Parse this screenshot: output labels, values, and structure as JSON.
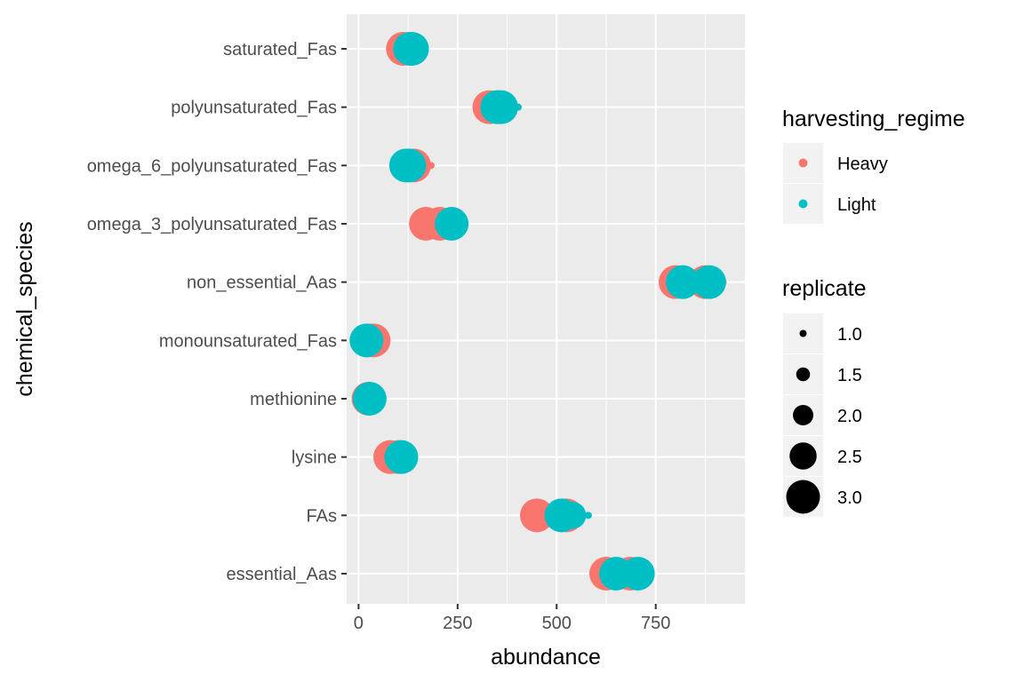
{
  "chart_data": {
    "type": "scatter",
    "xlabel": "abundance",
    "ylabel": "chemical_species",
    "xlim": [
      -30,
      975
    ],
    "xticks": [
      0,
      250,
      500,
      750
    ],
    "xtick_labels": [
      "0",
      "250",
      "500",
      "750"
    ],
    "categories": [
      "essential_Aas",
      "FAs",
      "lysine",
      "methionine",
      "monounsaturated_Fas",
      "non_essential_Aas",
      "omega_3_polyunsaturated_Fas",
      "omega_6_polyunsaturated_Fas",
      "polyunsaturated_Fas",
      "saturated_Fas"
    ],
    "grid": true,
    "legend_position": "right",
    "color_legend": {
      "title": "harvesting_regime",
      "entries": [
        {
          "label": "Heavy",
          "color": "#F8766D"
        },
        {
          "label": "Light",
          "color": "#00BFC4"
        }
      ]
    },
    "size_legend": {
      "title": "replicate",
      "entries": [
        "1.0",
        "1.5",
        "2.0",
        "2.5",
        "3.0"
      ],
      "values": [
        1.0,
        1.5,
        2.0,
        2.5,
        3.0
      ]
    },
    "series": [
      {
        "name": "Heavy",
        "color": "#F8766D",
        "points": [
          {
            "category": "saturated_Fas",
            "x": 112,
            "replicate": 3
          },
          {
            "category": "saturated_Fas",
            "x": 128,
            "replicate": 3
          },
          {
            "category": "polyunsaturated_Fas",
            "x": 330,
            "replicate": 3
          },
          {
            "category": "polyunsaturated_Fas",
            "x": 355,
            "replicate": 3
          },
          {
            "category": "omega_6_polyunsaturated_Fas",
            "x": 140,
            "replicate": 3
          },
          {
            "category": "omega_6_polyunsaturated_Fas",
            "x": 183,
            "replicate": 1
          },
          {
            "category": "omega_3_polyunsaturated_Fas",
            "x": 170,
            "replicate": 3
          },
          {
            "category": "omega_3_polyunsaturated_Fas",
            "x": 205,
            "replicate": 3
          },
          {
            "category": "non_essential_Aas",
            "x": 800,
            "replicate": 3
          },
          {
            "category": "non_essential_Aas",
            "x": 875,
            "replicate": 3
          },
          {
            "category": "non_essential_Aas",
            "x": 920,
            "replicate": 1
          },
          {
            "category": "monounsaturated_Fas",
            "x": 38,
            "replicate": 3
          },
          {
            "category": "monounsaturated_Fas",
            "x": 25,
            "replicate": 3
          },
          {
            "category": "methionine",
            "x": 25,
            "replicate": 3
          },
          {
            "category": "lysine",
            "x": 80,
            "replicate": 3
          },
          {
            "category": "lysine",
            "x": 100,
            "replicate": 3
          },
          {
            "category": "FAs",
            "x": 450,
            "replicate": 3
          },
          {
            "category": "FAs",
            "x": 525,
            "replicate": 3
          },
          {
            "category": "essential_Aas",
            "x": 625,
            "replicate": 3
          },
          {
            "category": "essential_Aas",
            "x": 685,
            "replicate": 3
          }
        ]
      },
      {
        "name": "Light",
        "color": "#00BFC4",
        "points": [
          {
            "category": "saturated_Fas",
            "x": 135,
            "replicate": 3
          },
          {
            "category": "saturated_Fas",
            "x": 130,
            "replicate": 3
          },
          {
            "category": "polyunsaturated_Fas",
            "x": 350,
            "replicate": 3
          },
          {
            "category": "polyunsaturated_Fas",
            "x": 360,
            "replicate": 3
          },
          {
            "category": "polyunsaturated_Fas",
            "x": 403,
            "replicate": 1
          },
          {
            "category": "omega_6_polyunsaturated_Fas",
            "x": 120,
            "replicate": 3
          },
          {
            "category": "omega_6_polyunsaturated_Fas",
            "x": 128,
            "replicate": 3
          },
          {
            "category": "omega_3_polyunsaturated_Fas",
            "x": 235,
            "replicate": 3
          },
          {
            "category": "non_essential_Aas",
            "x": 818,
            "replicate": 3
          },
          {
            "category": "non_essential_Aas",
            "x": 885,
            "replicate": 3
          },
          {
            "category": "monounsaturated_Fas",
            "x": 20,
            "replicate": 3
          },
          {
            "category": "methionine",
            "x": 28,
            "replicate": 3
          },
          {
            "category": "lysine",
            "x": 108,
            "replicate": 3
          },
          {
            "category": "FAs",
            "x": 512,
            "replicate": 3
          },
          {
            "category": "FAs",
            "x": 540,
            "replicate": 2.5
          },
          {
            "category": "FAs",
            "x": 580,
            "replicate": 1
          },
          {
            "category": "essential_Aas",
            "x": 650,
            "replicate": 3
          },
          {
            "category": "essential_Aas",
            "x": 705,
            "replicate": 3
          }
        ]
      }
    ]
  }
}
